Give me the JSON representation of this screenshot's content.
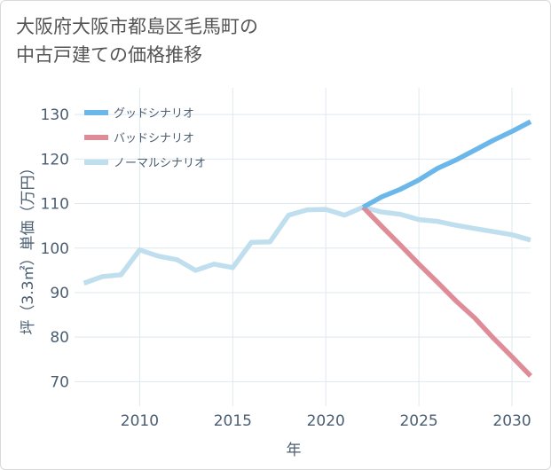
{
  "title": {
    "line1": "大阪府大阪市都島区毛馬町の",
    "line2": "中古戸建ての価格推移"
  },
  "chart_data": {
    "type": "line",
    "title": "大阪府大阪市都島区毛馬町の中古戸建ての価格推移",
    "xlabel": "年",
    "ylabel": "坪（3.3㎡）単価（万円）",
    "xlim": [
      2006.5,
      2031
    ],
    "ylim": [
      64.5,
      136
    ],
    "xticks": [
      2010,
      2015,
      2020,
      2025,
      2030
    ],
    "yticks": [
      70,
      80,
      90,
      100,
      110,
      120,
      130
    ],
    "grid": true,
    "legend_position": "top-left",
    "series": [
      {
        "name": "グッドシナリオ",
        "color": "#6cb7ea",
        "x": [
          2022,
          2023,
          2024,
          2025,
          2026,
          2027,
          2028,
          2029,
          2030,
          2031
        ],
        "y": [
          109.2,
          111.5,
          113.2,
          115.3,
          117.9,
          119.8,
          122.0,
          124.2,
          126.2,
          128.4
        ]
      },
      {
        "name": "バッドシナリオ",
        "color": "#de8c97",
        "x": [
          2022,
          2023,
          2024,
          2025,
          2026,
          2027,
          2028,
          2029,
          2030,
          2031
        ],
        "y": [
          109.2,
          104.9,
          100.7,
          96.4,
          92.3,
          88.1,
          84.3,
          79.8,
          75.6,
          71.3
        ]
      },
      {
        "name": "ノーマルシナリオ",
        "color": "#bfdfee",
        "x": [
          2007,
          2008,
          2009,
          2010,
          2011,
          2012,
          2013,
          2014,
          2015,
          2016,
          2017,
          2018,
          2019,
          2020,
          2021,
          2022,
          2023,
          2024,
          2025,
          2026,
          2027,
          2028,
          2029,
          2030,
          2031
        ],
        "y": [
          92.1,
          93.6,
          94.0,
          99.6,
          98.2,
          97.4,
          95.0,
          96.4,
          95.6,
          101.3,
          101.4,
          107.4,
          108.6,
          108.7,
          107.4,
          109.2,
          108.1,
          107.6,
          106.4,
          106.0,
          105.1,
          104.4,
          103.7,
          103.0,
          101.8
        ]
      }
    ]
  }
}
